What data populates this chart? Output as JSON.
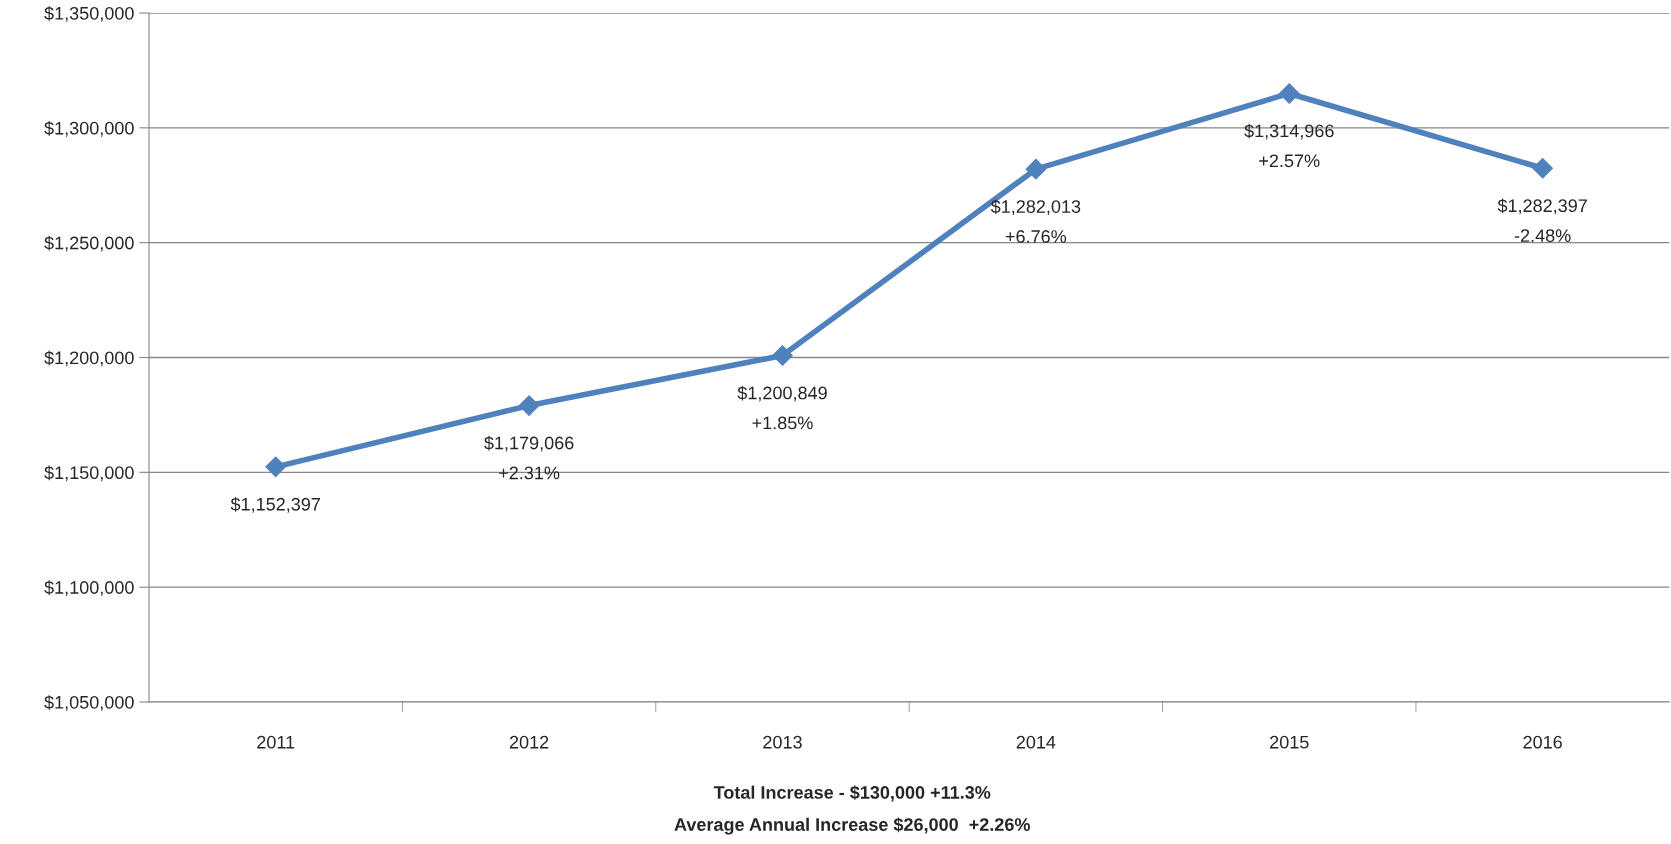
{
  "chart_data": {
    "type": "line",
    "categories": [
      "2011",
      "2012",
      "2013",
      "2014",
      "2015",
      "2016"
    ],
    "series": [
      {
        "color": "#4f81bd",
        "values": [
          1152397,
          1179066,
          1200849,
          1282013,
          1314966,
          1282397
        ],
        "value_labels": [
          "$1,152,397",
          "$1,179,066\n+2.31%",
          "$1,200,849\n+1.85%",
          "$1,282,013\n+6.76%",
          "$1,314,966\n+2.57%",
          "$1,282,397\n-2.48%"
        ]
      }
    ],
    "ylim": [
      1050000,
      1350000
    ],
    "yticks": [
      {
        "value": 1050000,
        "label": "$1,050,000"
      },
      {
        "value": 1100000,
        "label": "$1,100,000"
      },
      {
        "value": 1150000,
        "label": "$1,150,000"
      },
      {
        "value": 1200000,
        "label": "$1,200,000"
      },
      {
        "value": 1250000,
        "label": "$1,250,000"
      },
      {
        "value": 1300000,
        "label": "$1,300,000"
      },
      {
        "value": 1350000,
        "label": "$1,350,000"
      }
    ],
    "grid": "y",
    "marker": "diamond",
    "line_style": "solid",
    "annotations": [
      "Total Increase - $130,000 +11.3%",
      "Average Annual Increase $26,000  +2.26%"
    ]
  }
}
